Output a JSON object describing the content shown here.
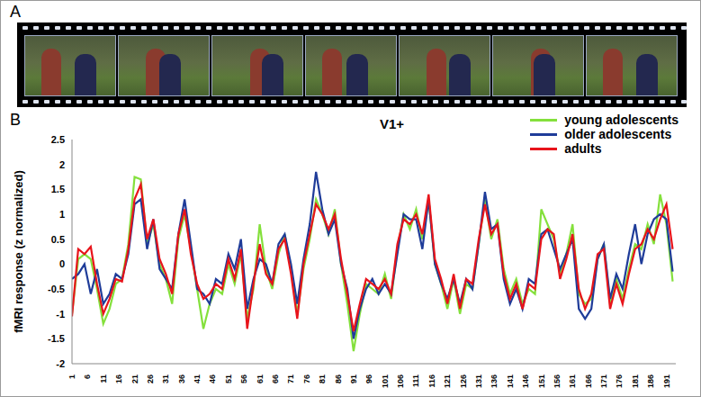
{
  "panel_labels": [
    "A",
    "B"
  ],
  "chart_data": {
    "type": "line",
    "title": "V1+",
    "ylabel": "fMRI response (z normalized)",
    "xlim": [
      1,
      194
    ],
    "xticks": [
      1,
      6,
      11,
      16,
      21,
      26,
      31,
      36,
      41,
      46,
      51,
      56,
      61,
      66,
      71,
      76,
      81,
      86,
      91,
      96,
      101,
      106,
      111,
      116,
      121,
      126,
      131,
      136,
      141,
      146,
      151,
      156,
      161,
      166,
      171,
      176,
      181,
      186,
      191
    ],
    "ylim": [
      -2,
      2.5
    ],
    "yticks": [
      -2,
      -1.5,
      -1,
      -0.5,
      0,
      0.5,
      1,
      1.5,
      2,
      2.5
    ],
    "grid": false,
    "legend": "upper right",
    "x": [
      1,
      3,
      5,
      7,
      9,
      11,
      13,
      15,
      17,
      19,
      21,
      23,
      25,
      27,
      29,
      31,
      33,
      35,
      37,
      39,
      41,
      43,
      45,
      47,
      49,
      51,
      53,
      55,
      57,
      59,
      61,
      63,
      65,
      67,
      69,
      71,
      73,
      75,
      77,
      79,
      81,
      83,
      85,
      87,
      89,
      91,
      93,
      95,
      97,
      99,
      101,
      103,
      105,
      107,
      109,
      111,
      113,
      115,
      117,
      119,
      121,
      123,
      125,
      127,
      129,
      131,
      133,
      135,
      137,
      139,
      141,
      143,
      145,
      147,
      149,
      151,
      153,
      155,
      157,
      159,
      161,
      163,
      165,
      167,
      169,
      171,
      173,
      175,
      177,
      179,
      181,
      183,
      185,
      187,
      189,
      191,
      193
    ],
    "series": [
      {
        "name": "young adolescents",
        "color": "#84e03c",
        "values": [
          -1.0,
          0.1,
          0.2,
          0.1,
          -0.5,
          -1.2,
          -0.9,
          -0.4,
          -0.3,
          0.4,
          1.75,
          1.7,
          0.4,
          0.8,
          0.0,
          -0.3,
          -0.8,
          0.5,
          1.0,
          0.3,
          -0.5,
          -1.3,
          -0.8,
          -0.5,
          -0.6,
          0.0,
          -0.4,
          0.2,
          -1.1,
          -0.5,
          0.8,
          -0.1,
          -0.5,
          0.2,
          0.6,
          -0.1,
          -1.0,
          -0.1,
          0.5,
          1.3,
          1.0,
          0.6,
          1.1,
          0.0,
          -0.8,
          -1.75,
          -1.0,
          -0.4,
          -0.5,
          -0.6,
          -0.2,
          -0.7,
          0.3,
          1.0,
          0.7,
          1.1,
          0.5,
          1.3,
          0.0,
          -0.4,
          -0.9,
          -0.3,
          -1.0,
          -0.4,
          -0.5,
          0.4,
          1.3,
          0.5,
          0.9,
          -0.1,
          -0.6,
          -0.3,
          -0.8,
          -0.5,
          -0.6,
          1.1,
          0.8,
          0.5,
          -0.2,
          0.2,
          0.8,
          -0.6,
          -0.8,
          -0.7,
          0.1,
          0.4,
          -0.8,
          -0.3,
          -0.7,
          -0.1,
          0.4,
          0.3,
          0.8,
          0.4,
          1.4,
          0.8,
          -0.35
        ]
      },
      {
        "name": "older adolescents",
        "color": "#1f3c99",
        "values": [
          -0.3,
          -0.2,
          0.0,
          -0.6,
          -0.1,
          -0.8,
          -0.6,
          -0.2,
          -0.3,
          0.2,
          1.2,
          1.3,
          0.3,
          0.9,
          -0.1,
          -0.3,
          -0.5,
          0.6,
          1.3,
          0.4,
          -0.5,
          -0.6,
          -0.8,
          -0.3,
          -0.4,
          0.2,
          -0.1,
          0.5,
          -0.9,
          -0.3,
          0.1,
          0.0,
          -0.4,
          0.4,
          0.6,
          0.0,
          -0.8,
          0.1,
          0.8,
          1.85,
          1.1,
          0.6,
          0.9,
          0.0,
          -0.5,
          -1.5,
          -0.9,
          -0.5,
          -0.3,
          -0.6,
          -0.4,
          -0.6,
          0.2,
          1.0,
          0.9,
          0.9,
          0.3,
          1.3,
          0.0,
          -0.4,
          -0.7,
          -0.3,
          -0.8,
          -0.3,
          -0.5,
          0.4,
          1.45,
          0.7,
          0.8,
          -0.3,
          -0.8,
          -0.5,
          -0.9,
          -0.3,
          -0.4,
          0.6,
          0.7,
          0.3,
          -0.1,
          0.2,
          0.5,
          -0.9,
          -1.1,
          -0.9,
          0.1,
          0.4,
          -0.7,
          -0.2,
          -0.5,
          0.2,
          0.8,
          0.0,
          0.6,
          0.9,
          1.0,
          0.9,
          -0.15
        ]
      },
      {
        "name": "adults",
        "color": "#e8141b",
        "values": [
          -1.05,
          0.3,
          0.2,
          0.35,
          -0.4,
          -1.0,
          -0.7,
          -0.3,
          -0.35,
          0.3,
          1.3,
          1.6,
          0.5,
          0.9,
          0.1,
          -0.2,
          -0.6,
          0.6,
          1.1,
          0.2,
          -0.4,
          -0.7,
          -0.6,
          -0.4,
          -0.5,
          0.1,
          -0.3,
          0.3,
          -1.3,
          -0.4,
          0.4,
          -0.2,
          -0.4,
          0.3,
          0.5,
          -0.2,
          -1.1,
          0.0,
          0.6,
          1.2,
          1.0,
          0.7,
          1.0,
          0.1,
          -0.6,
          -1.35,
          -0.8,
          -0.3,
          -0.4,
          -0.5,
          -0.3,
          -0.6,
          0.4,
          0.9,
          0.8,
          1.0,
          0.6,
          1.4,
          0.1,
          -0.3,
          -0.8,
          -0.2,
          -0.9,
          -0.3,
          -0.4,
          0.5,
          1.2,
          0.6,
          0.8,
          -0.2,
          -0.7,
          -0.4,
          -0.9,
          -0.4,
          -0.5,
          0.5,
          0.7,
          0.6,
          -0.3,
          0.1,
          0.6,
          -0.5,
          -0.9,
          -0.6,
          0.2,
          0.3,
          -0.9,
          -0.4,
          -0.8,
          -0.2,
          0.3,
          0.4,
          0.7,
          0.5,
          0.9,
          1.2,
          0.3
        ]
      }
    ]
  }
}
